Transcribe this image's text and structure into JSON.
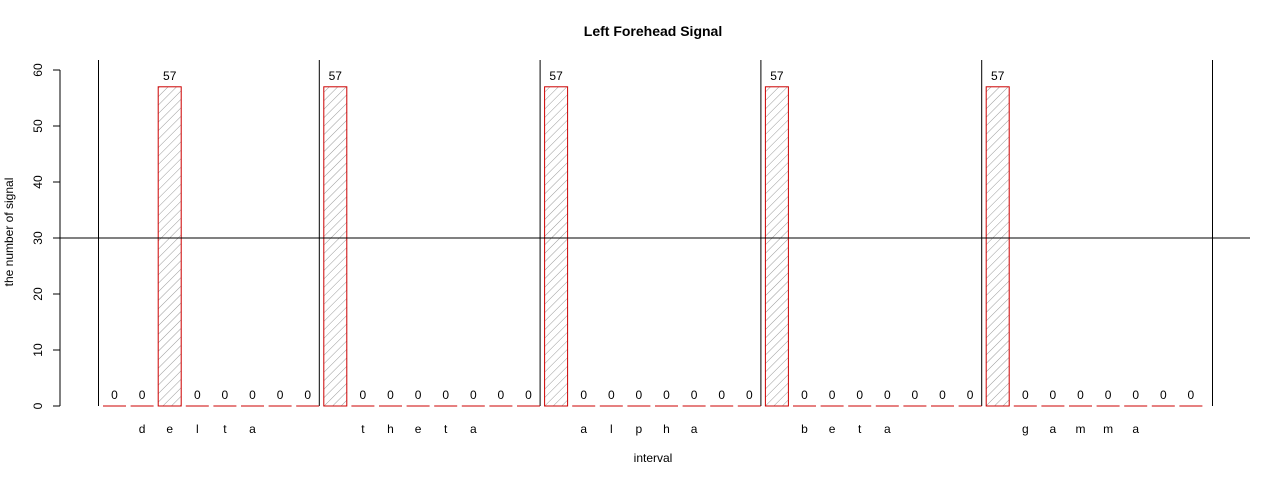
{
  "chart_data": {
    "type": "bar",
    "title": "Left Forehead Signal",
    "xlabel": "interval",
    "ylabel": "the number of signal",
    "ylim": [
      0,
      60
    ],
    "yticks": [
      0,
      10,
      20,
      30,
      40,
      50,
      60
    ],
    "reference_line_y": 30,
    "colors": {
      "bar_border": "#cc0000",
      "hatch": "#888888",
      "lines": "#000000"
    },
    "groups": [
      {
        "label": "d e l t a",
        "values": [
          0,
          0,
          57,
          0,
          0,
          0,
          0,
          0
        ]
      },
      {
        "label": "t h e t a",
        "values": [
          57,
          0,
          0,
          0,
          0,
          0,
          0,
          0
        ]
      },
      {
        "label": "a l p h a",
        "values": [
          57,
          0,
          0,
          0,
          0,
          0,
          0,
          0
        ]
      },
      {
        "label": "b e t a",
        "values": [
          57,
          0,
          0,
          0,
          0,
          0,
          0,
          0
        ]
      },
      {
        "label": "g a m m a",
        "values": [
          57,
          0,
          0,
          0,
          0,
          0,
          0,
          0
        ]
      }
    ]
  }
}
